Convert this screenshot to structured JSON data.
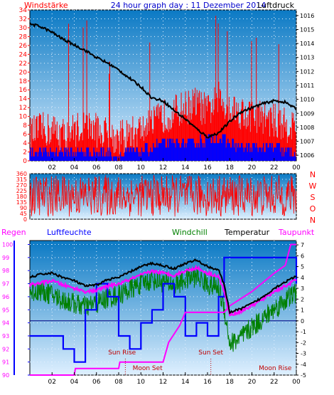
{
  "header": {
    "left_label": "Windstärke",
    "title": "24 hour graph day : 11 Dezember 2014",
    "right_label": "Luftdruck"
  },
  "colors": {
    "background_top": "#0a79c4",
    "background_bottom": "#dff0ff",
    "wind_speed": "#ff0000",
    "wind_gust": "#0000ff",
    "pressure": "#000000",
    "wind_dir": "#ff0000",
    "humidity": "#0000ff",
    "windchill": "#008000",
    "temperature": "#000000",
    "dewpoint": "#ff00ff",
    "rain": "#ff00ff",
    "sun_moon_label": "#c00000",
    "frame_left_axis": "#ff0000",
    "frame_right_axis": "#000000"
  },
  "chart_data": [
    {
      "type": "line",
      "panel": "wind-pressure",
      "title": "24 hour graph day : 11 Dezember 2014",
      "x_ticks": [
        "02",
        "04",
        "06",
        "08",
        "10",
        "12",
        "14",
        "16",
        "18",
        "20",
        "22",
        "00"
      ],
      "y_left": {
        "label": "Windstärke",
        "ticks": [
          "0",
          "2",
          "4",
          "6",
          "8",
          "10",
          "12",
          "14",
          "16",
          "18",
          "20",
          "22",
          "24",
          "26",
          "28",
          "30",
          "32",
          "34"
        ],
        "range": [
          0,
          34
        ]
      },
      "y_right": {
        "label": "Luftdruck",
        "ticks": [
          "1006",
          "1007",
          "1008",
          "1009",
          "1010",
          "1011",
          "1012",
          "1013",
          "1014",
          "1015",
          "1016"
        ],
        "range": [
          1005.6,
          1016.4
        ]
      },
      "grid": true,
      "series": [
        {
          "role": "pressure",
          "axis": "right",
          "x": [
            0,
            1,
            2,
            3,
            4,
            5,
            6,
            7,
            8,
            9,
            10,
            11,
            12,
            13,
            14,
            15,
            16,
            17,
            18,
            19,
            20,
            21,
            22,
            23,
            24
          ],
          "y": [
            1015.4,
            1015.2,
            1014.8,
            1014.3,
            1013.9,
            1013.5,
            1013.0,
            1012.6,
            1012.1,
            1011.5,
            1010.9,
            1010.1,
            1009.9,
            1009.2,
            1008.6,
            1007.9,
            1007.3,
            1007.6,
            1008.4,
            1009.1,
            1009.4,
            1009.7,
            1009.9,
            1009.8,
            1009.3
          ]
        },
        {
          "role": "wind_speed",
          "axis": "left",
          "x": [
            0,
            1,
            2,
            3,
            4,
            5,
            6,
            7,
            8,
            9,
            10,
            11,
            12,
            13,
            14,
            15,
            16,
            17,
            18,
            19,
            20,
            21,
            22,
            23,
            24
          ],
          "y": [
            6,
            7,
            7,
            6,
            7,
            8,
            7,
            6,
            5,
            6,
            7,
            8,
            10,
            11,
            12,
            13,
            11,
            14,
            12,
            11,
            10,
            10,
            9,
            8,
            8
          ]
        },
        {
          "role": "wind_gust",
          "axis": "left",
          "x": [
            0,
            1,
            2,
            3,
            4,
            5,
            6,
            7,
            8,
            9,
            10,
            11,
            12,
            13,
            14,
            15,
            16,
            17,
            18,
            19,
            20,
            21,
            22,
            23,
            24
          ],
          "y": [
            2,
            2,
            2,
            2,
            2,
            2,
            2,
            2,
            1,
            2,
            2,
            3,
            4,
            4,
            4,
            4,
            5,
            5,
            4,
            3,
            3,
            3,
            3,
            2,
            2
          ]
        }
      ]
    },
    {
      "type": "line",
      "panel": "wind-direction",
      "y_left": {
        "ticks": [
          "0",
          "45",
          "90",
          "135",
          "180",
          "225",
          "270",
          "315",
          "360"
        ],
        "range": [
          0,
          360
        ]
      },
      "y_right": {
        "ticks": [
          "N",
          "W",
          "S",
          "O",
          "N"
        ]
      },
      "series": [
        {
          "role": "wind_direction",
          "axis": "left",
          "x": [
            0,
            24
          ],
          "y_range": [
            20,
            350
          ]
        }
      ]
    },
    {
      "type": "line",
      "panel": "temperature-humidity",
      "legend": [
        "Regen",
        "Luftfeuchte",
        "Windchill",
        "Temperatur",
        "Taupunkt"
      ],
      "x_ticks": [
        "02",
        "04",
        "06",
        "08",
        "10",
        "12",
        "14",
        "16",
        "18",
        "20",
        "22",
        "00"
      ],
      "y_left_outer": {
        "label": "Regen",
        "ticks": [
          "90",
          "91",
          "92",
          "93",
          "94",
          "95",
          "96",
          "97",
          "98",
          "99",
          "100"
        ],
        "range": [
          90,
          100.3
        ]
      },
      "y_right": {
        "ticks": [
          "7",
          "6",
          "5",
          "4",
          "3",
          "2",
          "1",
          "0",
          "-1",
          "-2",
          "-3",
          "-4",
          "-5"
        ],
        "range": [
          -5,
          7.4
        ]
      },
      "grid": true,
      "annotations": [
        {
          "text": "Sun Rise",
          "x": 8.3
        },
        {
          "text": "Moon Set",
          "x": 10.6
        },
        {
          "text": "Sun Set",
          "x": 16.3
        },
        {
          "text": "Moon Rise",
          "x": 22.1
        }
      ],
      "series": [
        {
          "role": "temperature",
          "axis": "right",
          "x": [
            0,
            1,
            2,
            3,
            4,
            5,
            6,
            7,
            8,
            9,
            10,
            11,
            12,
            13,
            14,
            15,
            16,
            17,
            17.5,
            18,
            19,
            20,
            21,
            22,
            23,
            24
          ],
          "y": [
            4.0,
            4.3,
            4.4,
            4.0,
            3.7,
            3.2,
            3.3,
            3.8,
            4.0,
            4.5,
            5.0,
            5.3,
            5.1,
            4.8,
            5.3,
            5.6,
            5.0,
            4.7,
            3.3,
            0.8,
            1.1,
            1.6,
            2.2,
            3.0,
            3.6,
            4.1
          ]
        },
        {
          "role": "dewpoint",
          "axis": "right",
          "x": [
            0,
            1,
            2,
            3,
            4,
            5,
            6,
            7,
            8,
            9,
            10,
            11,
            12,
            13,
            14,
            15,
            16,
            17,
            17.5,
            18,
            19,
            20,
            21,
            22,
            23,
            24
          ],
          "y": [
            3.3,
            3.5,
            3.7,
            3.3,
            3.0,
            2.7,
            2.8,
            3.2,
            3.4,
            3.8,
            4.2,
            4.6,
            4.4,
            4.2,
            4.6,
            4.9,
            4.4,
            4.1,
            2.7,
            0.5,
            0.9,
            1.4,
            2.0,
            2.7,
            3.2,
            3.8
          ]
        },
        {
          "role": "windchill",
          "axis": "right",
          "x": [
            0,
            1,
            2,
            3,
            4,
            5,
            6,
            7,
            8,
            9,
            10,
            11,
            12,
            13,
            14,
            15,
            16,
            17,
            17.5,
            18,
            19,
            20,
            21,
            22,
            23,
            24
          ],
          "y": [
            2.6,
            2.8,
            2.4,
            1.9,
            1.6,
            1.3,
            1.6,
            2.1,
            2.4,
            2.9,
            3.4,
            3.8,
            3.6,
            3.3,
            3.8,
            4.1,
            3.4,
            3.0,
            1.2,
            -2.1,
            -1.6,
            -0.6,
            0.2,
            1.1,
            1.9,
            2.6
          ]
        },
        {
          "role": "humidity",
          "axis": "left_outer",
          "x": [
            0,
            1,
            2,
            3,
            4,
            5,
            6,
            7,
            8,
            9,
            10,
            11,
            12,
            13,
            14,
            15,
            16,
            17,
            17.5,
            18,
            19,
            20,
            21,
            22,
            23,
            24
          ],
          "y": [
            93,
            93,
            93,
            92,
            91,
            95,
            97,
            96,
            93,
            92,
            94,
            95,
            97,
            96,
            93,
            94,
            93,
            96,
            99,
            99,
            99,
            99,
            99,
            99,
            99,
            97
          ]
        },
        {
          "role": "rain",
          "axis": "left_outer",
          "x": [
            0,
            4.0,
            4.1,
            8.0,
            8.1,
            12.0,
            12.5,
            13.5,
            14.0,
            17.5,
            18.0,
            20.0,
            22.0,
            23.0,
            23.5,
            24
          ],
          "y": [
            90.0,
            90.0,
            90.5,
            90.5,
            91.0,
            91.0,
            92.5,
            93.8,
            94.8,
            94.8,
            95.3,
            96.4,
            97.8,
            98.4,
            100.0,
            100.0
          ]
        }
      ]
    }
  ]
}
